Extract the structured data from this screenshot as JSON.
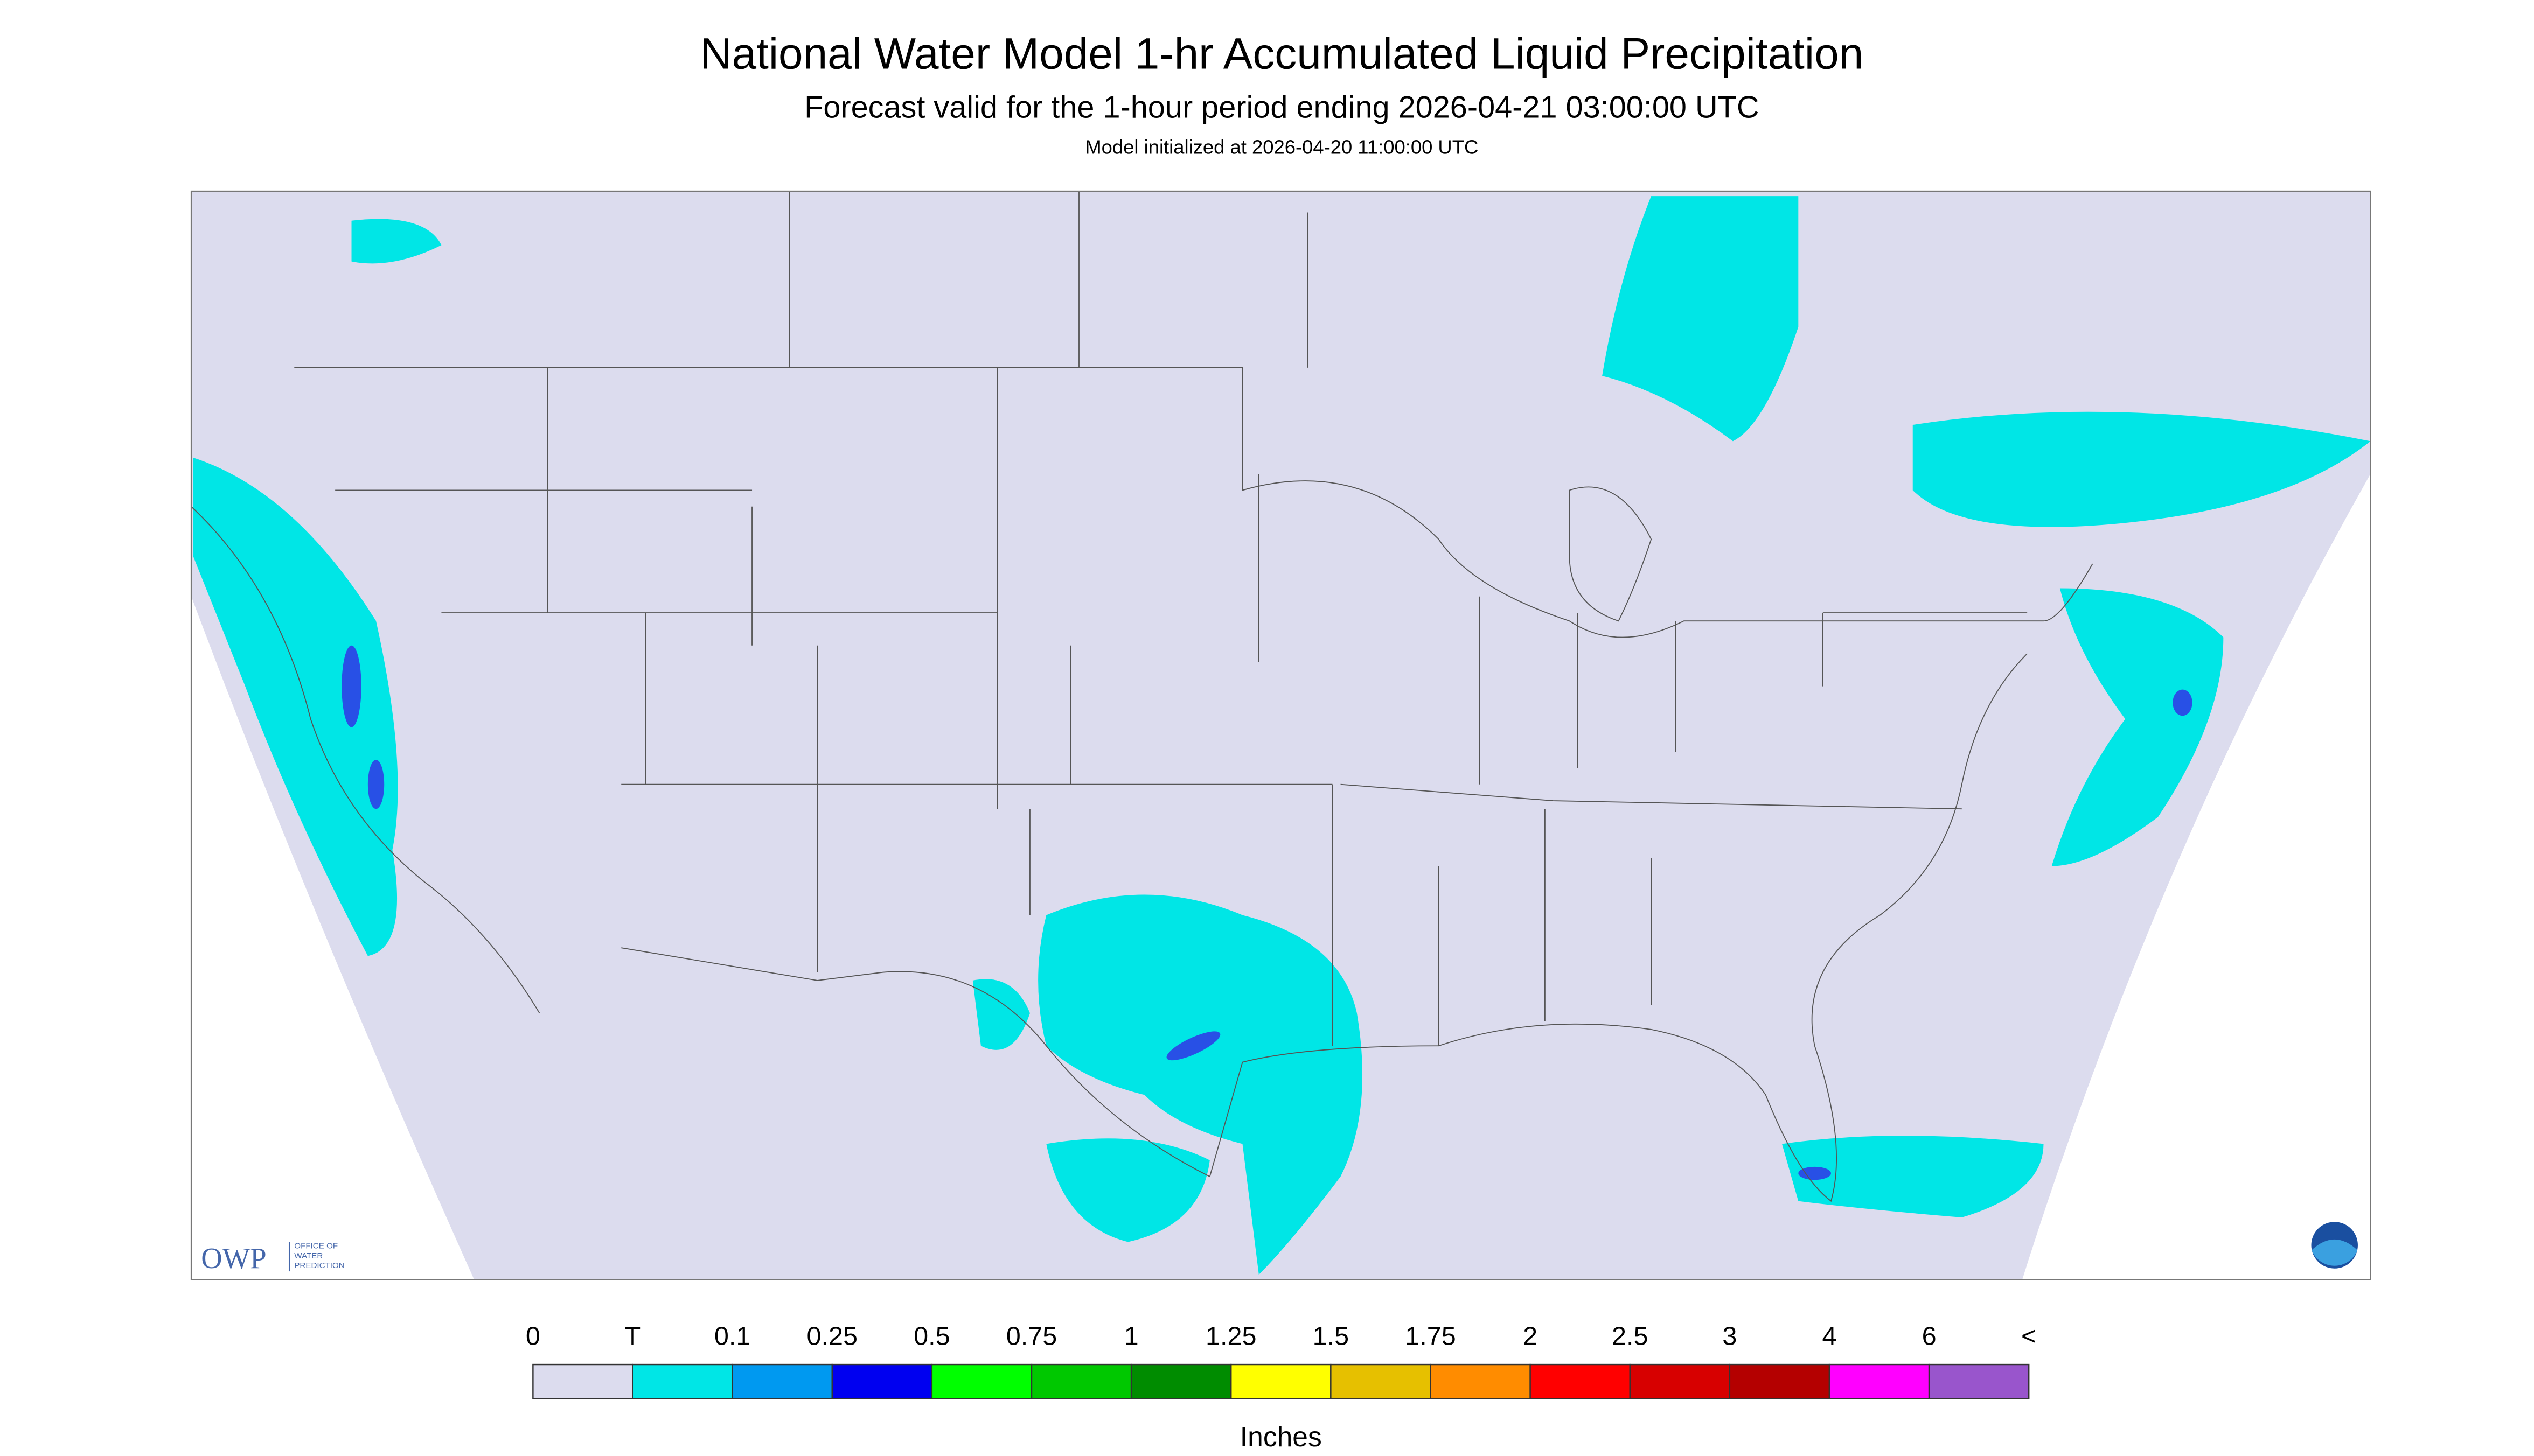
{
  "header": {
    "title": "National Water Model 1-hr Accumulated Liquid Precipitation",
    "subtitle": "Forecast valid for the 1-hour period ending 2026-04-21 03:00:00 UTC",
    "init": "Model initialized at 2026-04-20 11:00:00 UTC"
  },
  "legend": {
    "labels": [
      "0",
      "T",
      "0.1",
      "0.25",
      "0.5",
      "0.75",
      "1",
      "1.25",
      "1.5",
      "1.75",
      "2",
      "2.5",
      "3",
      "4",
      "6",
      "<"
    ],
    "colors": [
      "#dcdcee",
      "#00e6e6",
      "#0099f0",
      "#0000f0",
      "#00ff00",
      "#00c800",
      "#008c00",
      "#ffff00",
      "#e6c000",
      "#ff8c00",
      "#ff0000",
      "#d70000",
      "#b40000",
      "#ff00ff",
      "#9955cc"
    ],
    "unit": "Inches"
  },
  "logo": {
    "abbr": "OWP",
    "lines": [
      "OFFICE OF",
      "WATER",
      "PREDICTION"
    ]
  }
}
